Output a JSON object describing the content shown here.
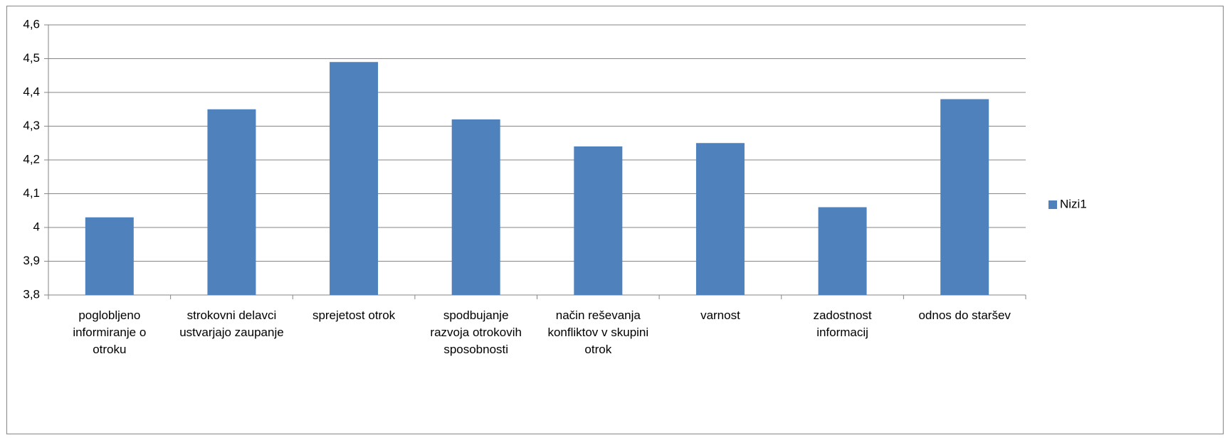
{
  "chart_data": {
    "type": "bar",
    "categories": [
      "poglobljeno informiranje o otroku",
      "strokovni delavci ustvarjajo zaupanje",
      "sprejetost otrok",
      "spodbujanje razvoja otrokovih sposobnosti",
      "način reševanja konfliktov v skupini otrok",
      "varnost",
      "zadostnost informacij",
      "odnos do staršev"
    ],
    "series": [
      {
        "name": "Nizi1",
        "color": "#4f81bd",
        "values": [
          4.03,
          4.35,
          4.49,
          4.32,
          4.24,
          4.25,
          4.06,
          4.38
        ]
      }
    ],
    "ylim": [
      3.8,
      4.6
    ],
    "yticks": [
      {
        "value": 3.8,
        "label": "3,8"
      },
      {
        "value": 3.9,
        "label": "3,9"
      },
      4,
      {
        "value": 4.1,
        "label": "4,1"
      },
      {
        "value": 4.2,
        "label": "4,2"
      },
      {
        "value": 4.3,
        "label": "4,3"
      },
      {
        "value": 4.4,
        "label": "4,4"
      },
      {
        "value": 4.5,
        "label": "4,5"
      },
      {
        "value": 4.6,
        "label": "4,6"
      }
    ],
    "grid": true,
    "legend": "right"
  }
}
